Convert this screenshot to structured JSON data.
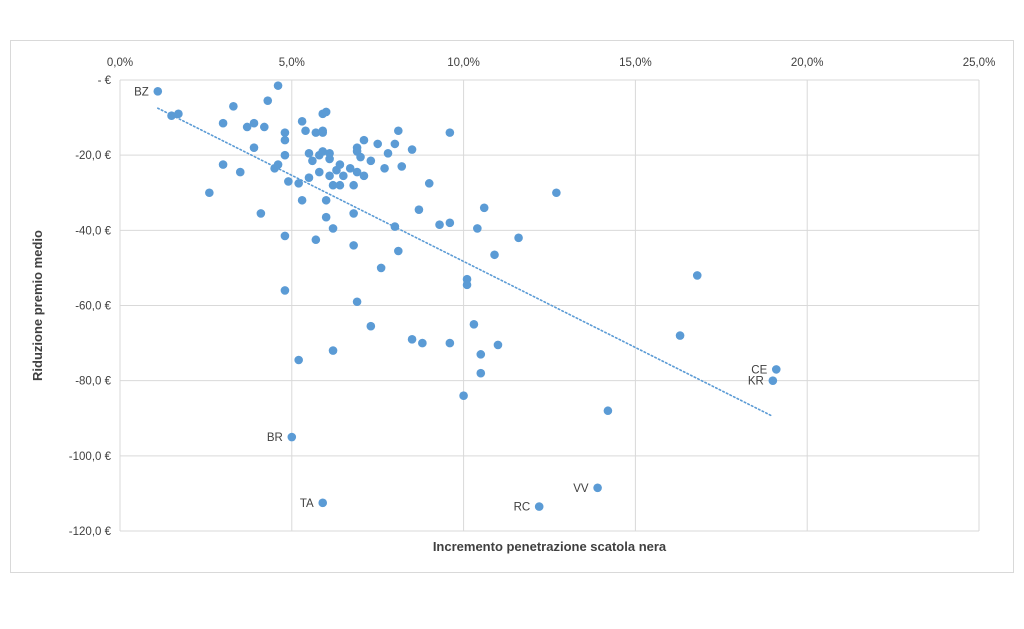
{
  "chart_data": {
    "type": "scatter",
    "title": "",
    "xlabel": "Incremento penetrazione scatola nera",
    "ylabel": "Riduzione premio medio",
    "xlim": [
      0,
      0.25
    ],
    "ylim": [
      -120,
      0
    ],
    "x_ticks": [
      0,
      0.05,
      0.1,
      0.15,
      0.2,
      0.25
    ],
    "x_tick_labels": [
      "0,0%",
      "5,0%",
      "10,0%",
      "15,0%",
      "20,0%",
      "25,0%"
    ],
    "y_ticks": [
      0,
      -20,
      -40,
      -60,
      -80,
      -100,
      -120
    ],
    "y_tick_labels": [
      "-  €",
      "-20,0 €",
      "-40,0 €",
      "-60,0 €",
      "-80,0 €",
      "-100,0 €",
      "-120,0 €"
    ],
    "x_axis_position": "top",
    "grid": true,
    "legend": "none",
    "colors": {
      "points": "#5b9bd5",
      "trendline": "#5b9bd5",
      "grid": "#d9d9d9",
      "text": "#404040"
    },
    "trendline": {
      "style": "dotted",
      "x": [
        0.011,
        0.19
      ],
      "y": [
        -7.5,
        -89.5
      ]
    },
    "points": [
      {
        "x": 0.011,
        "y": -3,
        "label": "BZ"
      },
      {
        "x": 0.015,
        "y": -9.5
      },
      {
        "x": 0.017,
        "y": -9
      },
      {
        "x": 0.026,
        "y": -30
      },
      {
        "x": 0.03,
        "y": -11.5
      },
      {
        "x": 0.03,
        "y": -22.5
      },
      {
        "x": 0.033,
        "y": -7
      },
      {
        "x": 0.035,
        "y": -24.5
      },
      {
        "x": 0.037,
        "y": -12.5
      },
      {
        "x": 0.039,
        "y": -11.5
      },
      {
        "x": 0.039,
        "y": -18
      },
      {
        "x": 0.041,
        "y": -35.5
      },
      {
        "x": 0.042,
        "y": -12.5
      },
      {
        "x": 0.043,
        "y": -5.5
      },
      {
        "x": 0.045,
        "y": -23.5
      },
      {
        "x": 0.046,
        "y": -1.5
      },
      {
        "x": 0.046,
        "y": -22.5
      },
      {
        "x": 0.048,
        "y": -14
      },
      {
        "x": 0.048,
        "y": -16
      },
      {
        "x": 0.048,
        "y": -20
      },
      {
        "x": 0.048,
        "y": -41.5
      },
      {
        "x": 0.048,
        "y": -56
      },
      {
        "x": 0.049,
        "y": -27
      },
      {
        "x": 0.05,
        "y": -95,
        "label": "BR"
      },
      {
        "x": 0.052,
        "y": -27.5
      },
      {
        "x": 0.052,
        "y": -74.5
      },
      {
        "x": 0.053,
        "y": -11
      },
      {
        "x": 0.053,
        "y": -32
      },
      {
        "x": 0.054,
        "y": -13.5
      },
      {
        "x": 0.055,
        "y": -19.5
      },
      {
        "x": 0.055,
        "y": -26
      },
      {
        "x": 0.056,
        "y": -21.5
      },
      {
        "x": 0.057,
        "y": -14
      },
      {
        "x": 0.057,
        "y": -42.5
      },
      {
        "x": 0.058,
        "y": -20
      },
      {
        "x": 0.058,
        "y": -24.5
      },
      {
        "x": 0.059,
        "y": -9
      },
      {
        "x": 0.059,
        "y": -13.5
      },
      {
        "x": 0.059,
        "y": -14
      },
      {
        "x": 0.059,
        "y": -19
      },
      {
        "x": 0.059,
        "y": -112.5,
        "label": "TA"
      },
      {
        "x": 0.06,
        "y": -8.5
      },
      {
        "x": 0.06,
        "y": -32
      },
      {
        "x": 0.06,
        "y": -36.5
      },
      {
        "x": 0.061,
        "y": -19.5
      },
      {
        "x": 0.061,
        "y": -21
      },
      {
        "x": 0.061,
        "y": -25.5
      },
      {
        "x": 0.062,
        "y": -28
      },
      {
        "x": 0.062,
        "y": -39.5
      },
      {
        "x": 0.062,
        "y": -72
      },
      {
        "x": 0.063,
        "y": -24
      },
      {
        "x": 0.064,
        "y": -22.5
      },
      {
        "x": 0.064,
        "y": -28
      },
      {
        "x": 0.065,
        "y": -25.5
      },
      {
        "x": 0.067,
        "y": -23.5
      },
      {
        "x": 0.068,
        "y": -28
      },
      {
        "x": 0.068,
        "y": -35.5
      },
      {
        "x": 0.068,
        "y": -44
      },
      {
        "x": 0.069,
        "y": -18
      },
      {
        "x": 0.069,
        "y": -19
      },
      {
        "x": 0.069,
        "y": -24.5
      },
      {
        "x": 0.069,
        "y": -59
      },
      {
        "x": 0.07,
        "y": -20.5
      },
      {
        "x": 0.071,
        "y": -16
      },
      {
        "x": 0.071,
        "y": -25.5
      },
      {
        "x": 0.073,
        "y": -21.5
      },
      {
        "x": 0.073,
        "y": -65.5
      },
      {
        "x": 0.075,
        "y": -17
      },
      {
        "x": 0.076,
        "y": -50
      },
      {
        "x": 0.077,
        "y": -23.5
      },
      {
        "x": 0.078,
        "y": -19.5
      },
      {
        "x": 0.08,
        "y": -17
      },
      {
        "x": 0.08,
        "y": -39
      },
      {
        "x": 0.081,
        "y": -13.5
      },
      {
        "x": 0.081,
        "y": -45.5
      },
      {
        "x": 0.082,
        "y": -23
      },
      {
        "x": 0.085,
        "y": -18.5
      },
      {
        "x": 0.085,
        "y": -69
      },
      {
        "x": 0.087,
        "y": -34.5
      },
      {
        "x": 0.088,
        "y": -70
      },
      {
        "x": 0.09,
        "y": -27.5
      },
      {
        "x": 0.093,
        "y": -38.5
      },
      {
        "x": 0.096,
        "y": -14
      },
      {
        "x": 0.096,
        "y": -38
      },
      {
        "x": 0.096,
        "y": -70
      },
      {
        "x": 0.1,
        "y": -84
      },
      {
        "x": 0.101,
        "y": -53
      },
      {
        "x": 0.101,
        "y": -54.5
      },
      {
        "x": 0.103,
        "y": -65
      },
      {
        "x": 0.104,
        "y": -39.5
      },
      {
        "x": 0.105,
        "y": -73
      },
      {
        "x": 0.105,
        "y": -78
      },
      {
        "x": 0.106,
        "y": -34
      },
      {
        "x": 0.109,
        "y": -46.5
      },
      {
        "x": 0.11,
        "y": -70.5
      },
      {
        "x": 0.116,
        "y": -42
      },
      {
        "x": 0.122,
        "y": -113.5,
        "label": "RC"
      },
      {
        "x": 0.127,
        "y": -30
      },
      {
        "x": 0.139,
        "y": -108.5,
        "label": "VV"
      },
      {
        "x": 0.142,
        "y": -88
      },
      {
        "x": 0.163,
        "y": -68
      },
      {
        "x": 0.168,
        "y": -52
      },
      {
        "x": 0.19,
        "y": -80,
        "label": "KR"
      },
      {
        "x": 0.191,
        "y": -77,
        "label": "CE"
      }
    ]
  }
}
